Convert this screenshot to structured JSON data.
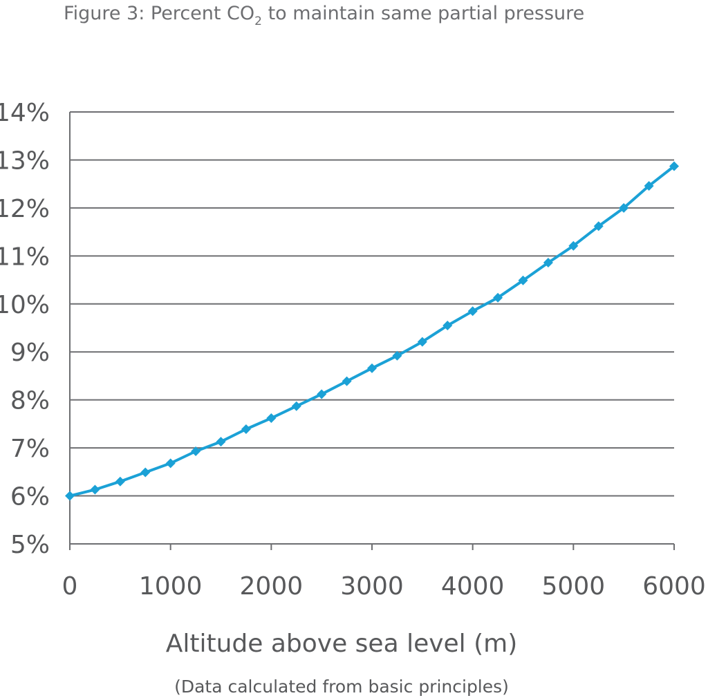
{
  "title": {
    "prefix": "Figure 3: Percent CO",
    "subscript": "2",
    "suffix": " to maintain same partial pressure"
  },
  "note": "(Data calculated from basic principles)",
  "colors": {
    "series": "#1ba1d6",
    "grid": "#6d6e71",
    "text": "#58595b"
  },
  "chart_data": {
    "type": "line",
    "title": "Figure 3: Percent CO2 to maintain same partial pressure",
    "xlabel": "Altitude above sea level (m)",
    "ylabel": "",
    "xlim": [
      0,
      6000
    ],
    "ylim": [
      5,
      14
    ],
    "x_ticks": [
      0,
      1000,
      2000,
      3000,
      4000,
      5000,
      6000
    ],
    "x_tick_labels": [
      "0",
      "1000",
      "2000",
      "3000",
      "4000",
      "5000",
      "6000"
    ],
    "y_ticks": [
      5,
      6,
      7,
      8,
      9,
      10,
      11,
      12,
      13,
      14
    ],
    "y_tick_labels": [
      "5%",
      "6%",
      "7%",
      "8%",
      "9%",
      "10%",
      "11%",
      "12%",
      "13%",
      "14%"
    ],
    "grid": true,
    "legend": "none",
    "series": [
      {
        "x": [
          0,
          250,
          500,
          750,
          1000,
          1250,
          1500,
          1750,
          2000,
          2250,
          2500,
          2750,
          3000,
          3250,
          3500,
          3750,
          4000,
          4250,
          4500,
          4750,
          5000,
          5250,
          5500,
          5750,
          6000
        ],
        "values": [
          6.0,
          6.13,
          6.3,
          6.49,
          6.68,
          6.93,
          7.13,
          7.39,
          7.62,
          7.87,
          8.12,
          8.39,
          8.66,
          8.92,
          9.21,
          9.55,
          9.85,
          10.13,
          10.49,
          10.86,
          11.21,
          11.62,
          12.0,
          12.46,
          12.87
        ]
      }
    ]
  }
}
